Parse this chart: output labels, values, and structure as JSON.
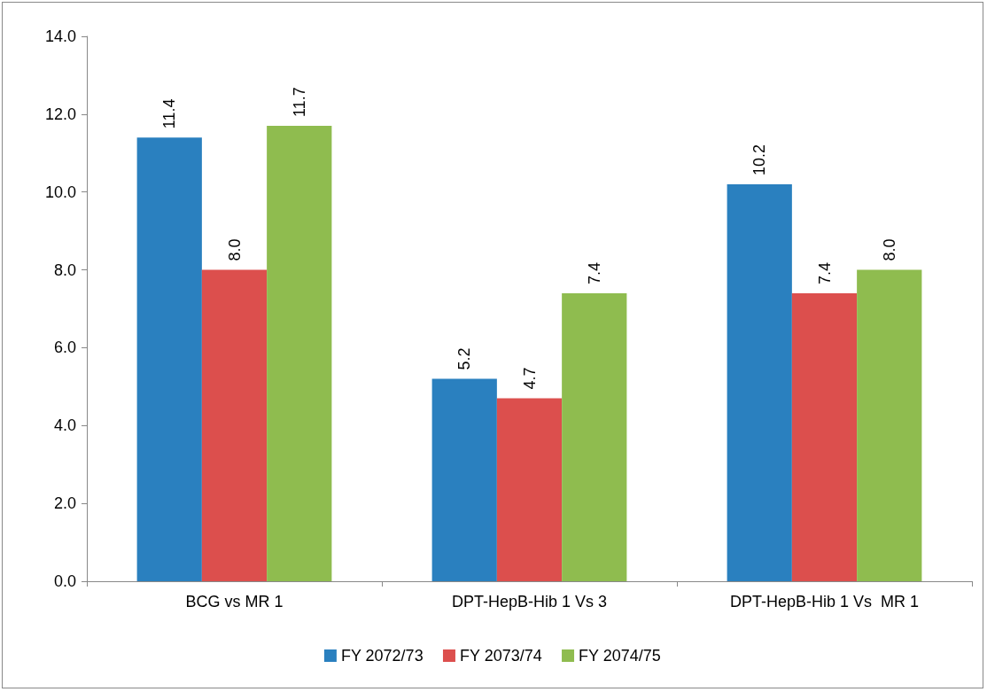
{
  "chart_data": {
    "type": "bar",
    "categories": [
      "BCG vs MR 1",
      "DPT-HepB-Hib 1 Vs 3",
      "DPT-HepB-Hib 1 Vs  MR 1"
    ],
    "series": [
      {
        "name": "FY 2072/73",
        "color": "#2a80bf",
        "values": [
          11.4,
          5.2,
          10.2
        ],
        "value_labels": [
          "11.4",
          "5.2",
          "10.2"
        ]
      },
      {
        "name": "FY 2073/74",
        "color": "#dc4f4d",
        "values": [
          8.0,
          4.7,
          7.4
        ],
        "value_labels": [
          "8.0",
          "4.7",
          "7.4"
        ]
      },
      {
        "name": "FY 2074/75",
        "color": "#8fbc4f",
        "values": [
          11.7,
          7.4,
          8.0
        ],
        "value_labels": [
          "11.7",
          "7.4",
          "8.0"
        ]
      }
    ],
    "ylim": [
      0,
      14
    ],
    "yticks": [
      {
        "value": 0,
        "label": "0.0"
      },
      {
        "value": 2,
        "label": "2.0"
      },
      {
        "value": 4,
        "label": "4.0"
      },
      {
        "value": 6,
        "label": "6.0"
      },
      {
        "value": 8,
        "label": "8.0"
      },
      {
        "value": 10,
        "label": "10.0"
      },
      {
        "value": 12,
        "label": "12.0"
      },
      {
        "value": 14,
        "label": "14.0"
      }
    ],
    "grid": false,
    "legend": "bottom"
  }
}
